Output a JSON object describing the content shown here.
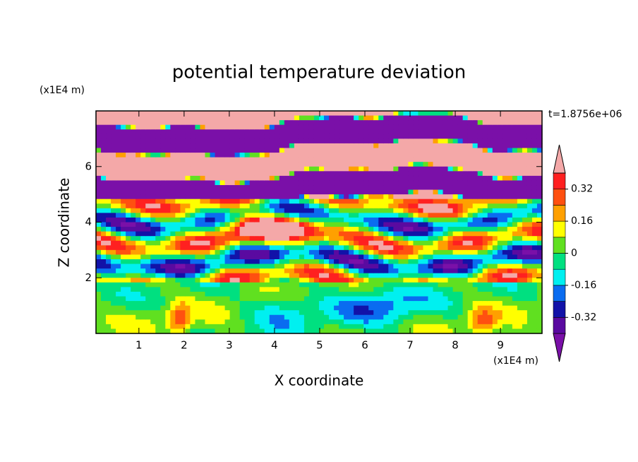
{
  "chart_data": {
    "type": "contour",
    "title": "potential temperature deviation",
    "xlabel": "X coordinate",
    "ylabel": "Z coordinate",
    "x_unit": "(x1E4 m)",
    "y_unit": "(x1E4 m)",
    "time_label": "t=1.8756e+06",
    "xlim": [
      0.05,
      9.92
    ],
    "ylim": [
      0,
      8
    ],
    "xticks": [
      1,
      2,
      3,
      4,
      5,
      6,
      7,
      8,
      9
    ],
    "yticks": [
      2,
      4,
      6
    ],
    "levels": [
      -0.4,
      -0.32,
      -0.24,
      -0.16,
      -0.08,
      0,
      0.08,
      0.16,
      0.24,
      0.32,
      0.4
    ],
    "colors": [
      "#7a10a8",
      "#5a0aa0",
      "#1212a8",
      "#0a6cf0",
      "#00f0f0",
      "#00e080",
      "#60e020",
      "#ffff00",
      "#ffa000",
      "#ff5010",
      "#ff2020",
      "#f4a8a8"
    ],
    "colorbar_ticks": [
      -0.32,
      -0.16,
      0,
      0.16,
      0.32
    ]
  }
}
